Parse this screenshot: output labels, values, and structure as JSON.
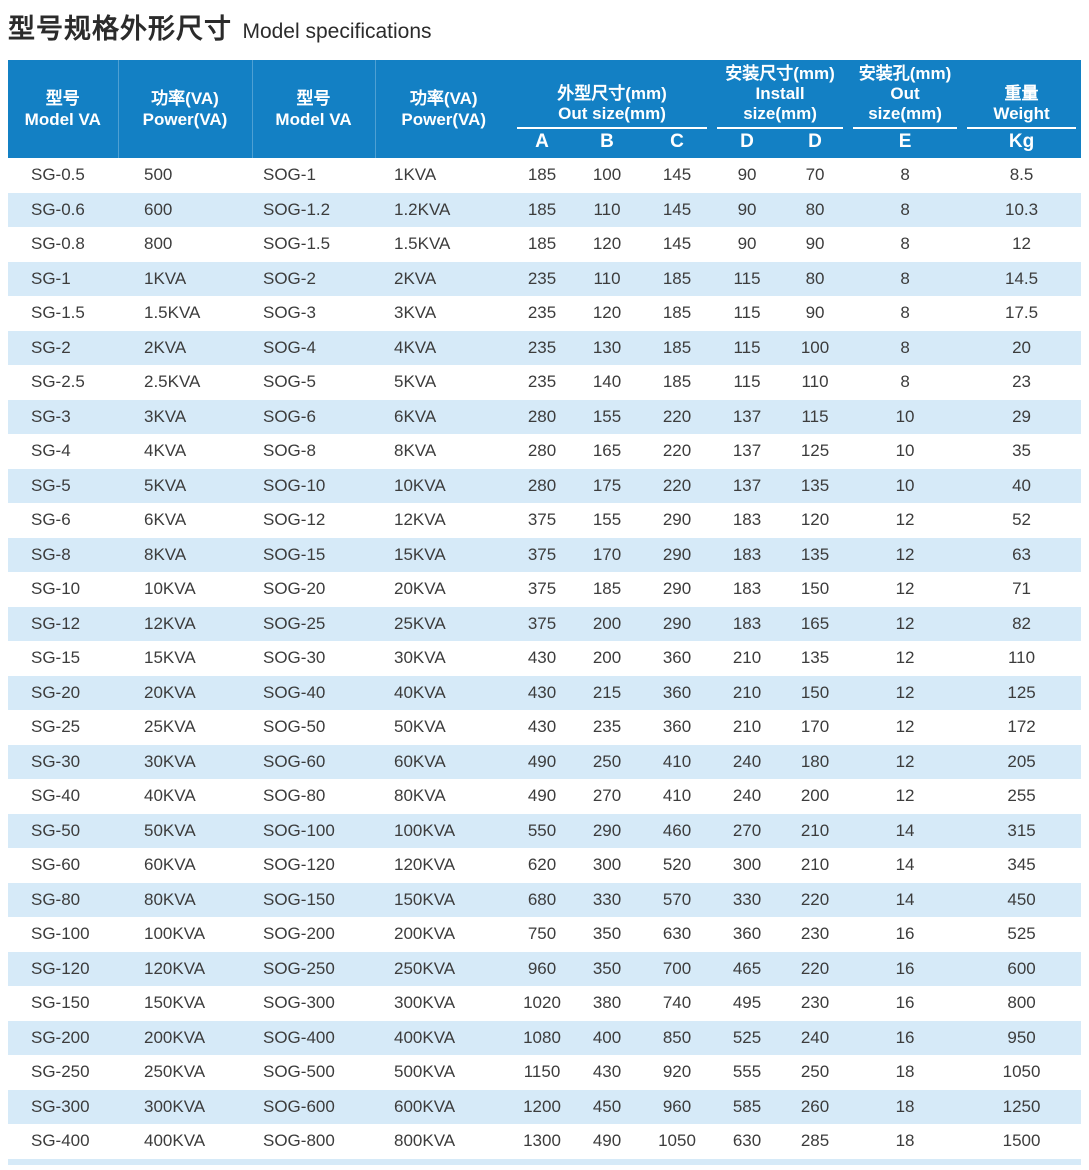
{
  "page": {
    "title_zh": "型号规格外形尺寸",
    "title_en": "Model specifications"
  },
  "colors": {
    "header_bg": "#1380c4",
    "stripe": "#d6eaf8",
    "text": "#3c3c3c"
  },
  "table": {
    "header": {
      "col_model_1": {
        "zh": "型号",
        "en": "Model VA"
      },
      "col_power_1": {
        "zh": "功率(VA)",
        "en": "Power(VA)"
      },
      "col_model_2": {
        "zh": "型号",
        "en": "Model VA"
      },
      "col_power_2": {
        "zh": "功率(VA)",
        "en": "Power(VA)"
      },
      "group_out_size": {
        "zh": "外型尺寸(mm)",
        "en": "Out size(mm)"
      },
      "group_install_size": {
        "zh": "安装尺寸(mm)",
        "en": "Install size(mm)"
      },
      "group_install_hole": {
        "zh": "安装孔(mm)",
        "en": "Out size(mm)"
      },
      "group_weight": {
        "zh": "重量",
        "en": "Weight"
      },
      "sub": [
        "A",
        "B",
        "C",
        "D",
        "D",
        "E",
        "Kg"
      ]
    },
    "rows": [
      [
        "SG-0.5",
        "500",
        "SOG-1",
        "1KVA",
        "185",
        "100",
        "145",
        "90",
        "70",
        "8",
        "8.5"
      ],
      [
        "SG-0.6",
        "600",
        "SOG-1.2",
        "1.2KVA",
        "185",
        "110",
        "145",
        "90",
        "80",
        "8",
        "10.3"
      ],
      [
        "SG-0.8",
        "800",
        "SOG-1.5",
        "1.5KVA",
        "185",
        "120",
        "145",
        "90",
        "90",
        "8",
        "12"
      ],
      [
        "SG-1",
        "1KVA",
        "SOG-2",
        "2KVA",
        "235",
        "110",
        "185",
        "115",
        "80",
        "8",
        "14.5"
      ],
      [
        "SG-1.5",
        "1.5KVA",
        "SOG-3",
        "3KVA",
        "235",
        "120",
        "185",
        "115",
        "90",
        "8",
        "17.5"
      ],
      [
        "SG-2",
        "2KVA",
        "SOG-4",
        "4KVA",
        "235",
        "130",
        "185",
        "115",
        "100",
        "8",
        "20"
      ],
      [
        "SG-2.5",
        "2.5KVA",
        "SOG-5",
        "5KVA",
        "235",
        "140",
        "185",
        "115",
        "110",
        "8",
        "23"
      ],
      [
        "SG-3",
        "3KVA",
        "SOG-6",
        "6KVA",
        "280",
        "155",
        "220",
        "137",
        "115",
        "10",
        "29"
      ],
      [
        "SG-4",
        "4KVA",
        "SOG-8",
        "8KVA",
        "280",
        "165",
        "220",
        "137",
        "125",
        "10",
        "35"
      ],
      [
        "SG-5",
        "5KVA",
        "SOG-10",
        "10KVA",
        "280",
        "175",
        "220",
        "137",
        "135",
        "10",
        "40"
      ],
      [
        "SG-6",
        "6KVA",
        "SOG-12",
        "12KVA",
        "375",
        "155",
        "290",
        "183",
        "120",
        "12",
        "52"
      ],
      [
        "SG-8",
        "8KVA",
        "SOG-15",
        "15KVA",
        "375",
        "170",
        "290",
        "183",
        "135",
        "12",
        "63"
      ],
      [
        "SG-10",
        "10KVA",
        "SOG-20",
        "20KVA",
        "375",
        "185",
        "290",
        "183",
        "150",
        "12",
        "71"
      ],
      [
        "SG-12",
        "12KVA",
        "SOG-25",
        "25KVA",
        "375",
        "200",
        "290",
        "183",
        "165",
        "12",
        "82"
      ],
      [
        "SG-15",
        "15KVA",
        "SOG-30",
        "30KVA",
        "430",
        "200",
        "360",
        "210",
        "135",
        "12",
        "110"
      ],
      [
        "SG-20",
        "20KVA",
        "SOG-40",
        "40KVA",
        "430",
        "215",
        "360",
        "210",
        "150",
        "12",
        "125"
      ],
      [
        "SG-25",
        "25KVA",
        "SOG-50",
        "50KVA",
        "430",
        "235",
        "360",
        "210",
        "170",
        "12",
        "172"
      ],
      [
        "SG-30",
        "30KVA",
        "SOG-60",
        "60KVA",
        "490",
        "250",
        "410",
        "240",
        "180",
        "12",
        "205"
      ],
      [
        "SG-40",
        "40KVA",
        "SOG-80",
        "80KVA",
        "490",
        "270",
        "410",
        "240",
        "200",
        "12",
        "255"
      ],
      [
        "SG-50",
        "50KVA",
        "SOG-100",
        "100KVA",
        "550",
        "290",
        "460",
        "270",
        "210",
        "14",
        "315"
      ],
      [
        "SG-60",
        "60KVA",
        "SOG-120",
        "120KVA",
        "620",
        "300",
        "520",
        "300",
        "210",
        "14",
        "345"
      ],
      [
        "SG-80",
        "80KVA",
        "SOG-150",
        "150KVA",
        "680",
        "330",
        "570",
        "330",
        "220",
        "14",
        "450"
      ],
      [
        "SG-100",
        "100KVA",
        "SOG-200",
        "200KVA",
        "750",
        "350",
        "630",
        "360",
        "230",
        "16",
        "525"
      ],
      [
        "SG-120",
        "120KVA",
        "SOG-250",
        "250KVA",
        "960",
        "350",
        "700",
        "465",
        "220",
        "16",
        "600"
      ],
      [
        "SG-150",
        "150KVA",
        "SOG-300",
        "300KVA",
        "1020",
        "380",
        "740",
        "495",
        "230",
        "16",
        "800"
      ],
      [
        "SG-200",
        "200KVA",
        "SOG-400",
        "400KVA",
        "1080",
        "400",
        "850",
        "525",
        "240",
        "16",
        "950"
      ],
      [
        "SG-250",
        "250KVA",
        "SOG-500",
        "500KVA",
        "1150",
        "430",
        "920",
        "555",
        "250",
        "18",
        "1050"
      ],
      [
        "SG-300",
        "300KVA",
        "SOG-600",
        "600KVA",
        "1200",
        "450",
        "960",
        "585",
        "260",
        "18",
        "1250"
      ],
      [
        "SG-400",
        "400KVA",
        "SOG-800",
        "800KVA",
        "1300",
        "490",
        "1050",
        "630",
        "285",
        "18",
        "1500"
      ]
    ]
  }
}
